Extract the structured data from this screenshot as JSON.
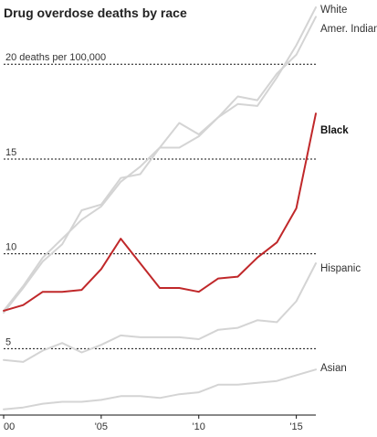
{
  "chart_data": {
    "type": "line",
    "title": "Drug overdose deaths by race",
    "xlabel": "",
    "ylabel": "",
    "xlim": [
      2000,
      2016
    ],
    "ylim": [
      1.5,
      23
    ],
    "grid": true,
    "x": [
      2000,
      2001,
      2002,
      2003,
      2004,
      2005,
      2006,
      2007,
      2008,
      2009,
      2010,
      2011,
      2012,
      2013,
      2014,
      2015,
      2016
    ],
    "x_ticks": [
      {
        "value": 2000,
        "label": "00"
      },
      {
        "value": 2005,
        "label": "'05"
      },
      {
        "value": 2010,
        "label": "'10"
      },
      {
        "value": 2015,
        "label": "'15"
      }
    ],
    "y_ticks": [
      {
        "value": 5,
        "label": "5"
      },
      {
        "value": 10,
        "label": "10"
      },
      {
        "value": 15,
        "label": "15"
      },
      {
        "value": 20,
        "label": "20 deaths per 100,000"
      }
    ],
    "series": [
      {
        "name": "White",
        "color": "#d4d4d4",
        "highlight": false,
        "values": [
          7.0,
          8.3,
          9.8,
          10.8,
          11.8,
          12.5,
          13.8,
          14.6,
          15.6,
          15.6,
          16.2,
          17.2,
          17.9,
          17.8,
          19.3,
          21.0,
          23.0
        ]
      },
      {
        "name": "Amer. Indian",
        "color": "#d4d4d4",
        "highlight": false,
        "values": [
          6.9,
          8.2,
          9.6,
          10.5,
          12.3,
          12.6,
          14.0,
          14.2,
          15.6,
          16.9,
          16.3,
          17.2,
          18.3,
          18.1,
          19.5,
          20.5,
          22.5
        ]
      },
      {
        "name": "Black",
        "color": "#c0282a",
        "highlight": true,
        "values": [
          7.0,
          7.3,
          8.0,
          8.0,
          8.1,
          9.2,
          10.8,
          9.5,
          8.2,
          8.2,
          8.0,
          8.7,
          8.8,
          9.8,
          10.6,
          12.4,
          17.4
        ]
      },
      {
        "name": "Hispanic",
        "color": "#d4d4d4",
        "highlight": false,
        "values": [
          4.4,
          4.3,
          4.9,
          5.3,
          4.8,
          5.2,
          5.7,
          5.6,
          5.6,
          5.6,
          5.5,
          6.0,
          6.1,
          6.5,
          6.4,
          7.5,
          9.5
        ]
      },
      {
        "name": "Asian",
        "color": "#d4d4d4",
        "highlight": false,
        "values": [
          1.8,
          1.9,
          2.1,
          2.2,
          2.2,
          2.3,
          2.5,
          2.5,
          2.4,
          2.6,
          2.7,
          3.1,
          3.1,
          3.2,
          3.3,
          3.6,
          3.9
        ]
      }
    ]
  }
}
